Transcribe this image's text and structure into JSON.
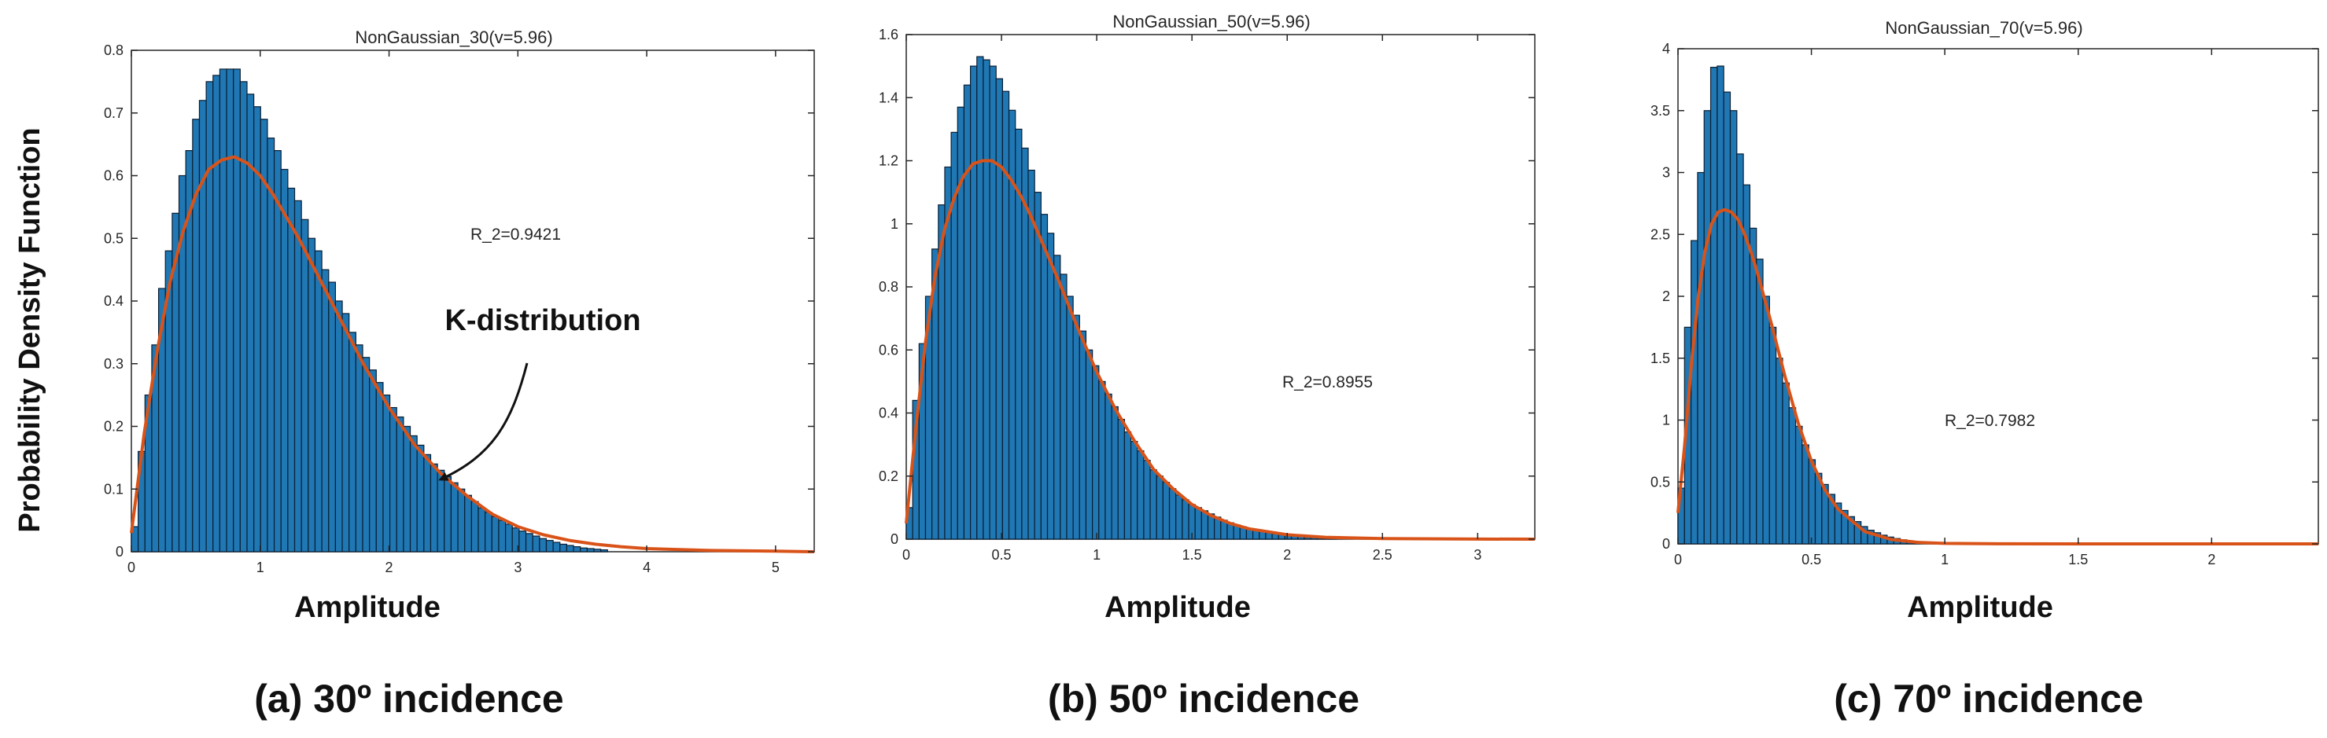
{
  "figure": {
    "ylabel": "Probability Density Function",
    "accent_colors": {
      "bar_fill": "#1f77b4",
      "bar_edge": "#0b1f33",
      "fit_curve": "#d95319"
    }
  },
  "chart_data": [
    {
      "type": "bar",
      "title": "NonGaussian_30(v=5.96)",
      "xlabel": "Amplitude",
      "ylabel": "Probability Density Function",
      "caption": "(a) 30º incidence",
      "r2_label": "R_2=0.9421",
      "annotation": "K-distribution",
      "xlim": [
        0,
        5.3
      ],
      "ylim": [
        0,
        0.8
      ],
      "xticks": [
        0,
        1,
        2,
        3,
        4,
        5
      ],
      "yticks": [
        0,
        0.1,
        0.2,
        0.3,
        0.4,
        0.5,
        0.6,
        0.7,
        0.8
      ],
      "bin_width": 0.0528,
      "bins_start": 0.0,
      "histogram_values": [
        0.04,
        0.16,
        0.25,
        0.33,
        0.42,
        0.48,
        0.54,
        0.6,
        0.64,
        0.69,
        0.72,
        0.75,
        0.76,
        0.77,
        0.77,
        0.77,
        0.75,
        0.73,
        0.71,
        0.69,
        0.66,
        0.64,
        0.61,
        0.58,
        0.56,
        0.53,
        0.5,
        0.48,
        0.45,
        0.43,
        0.4,
        0.38,
        0.35,
        0.33,
        0.31,
        0.29,
        0.27,
        0.25,
        0.23,
        0.215,
        0.2,
        0.185,
        0.17,
        0.155,
        0.14,
        0.13,
        0.12,
        0.11,
        0.1,
        0.09,
        0.08,
        0.07,
        0.063,
        0.056,
        0.05,
        0.044,
        0.038,
        0.033,
        0.029,
        0.025,
        0.021,
        0.018,
        0.015,
        0.012,
        0.01,
        0.008,
        0.006,
        0.005,
        0.004,
        0.003
      ],
      "fit_curve": {
        "name": "K-distribution",
        "x": [
          0.0,
          0.1,
          0.2,
          0.3,
          0.4,
          0.5,
          0.6,
          0.7,
          0.8,
          0.9,
          1.0,
          1.1,
          1.2,
          1.3,
          1.4,
          1.5,
          1.6,
          1.7,
          1.8,
          1.9,
          2.0,
          2.2,
          2.4,
          2.6,
          2.8,
          3.0,
          3.2,
          3.4,
          3.6,
          3.8,
          4.0,
          4.5,
          5.0,
          5.3
        ],
        "y": [
          0.03,
          0.19,
          0.32,
          0.43,
          0.51,
          0.57,
          0.61,
          0.625,
          0.63,
          0.62,
          0.6,
          0.57,
          0.535,
          0.5,
          0.46,
          0.42,
          0.38,
          0.34,
          0.3,
          0.265,
          0.23,
          0.17,
          0.125,
          0.09,
          0.06,
          0.04,
          0.027,
          0.018,
          0.012,
          0.008,
          0.005,
          0.002,
          0.001,
          0.0
        ]
      }
    },
    {
      "type": "bar",
      "title": "NonGaussian_50(v=5.96)",
      "xlabel": "Amplitude",
      "caption": "(b) 50º incidence",
      "r2_label": "R_2=0.8955",
      "xlim": [
        0,
        3.3
      ],
      "ylim": [
        0,
        1.6
      ],
      "xticks": [
        0,
        0.5,
        1,
        1.5,
        2,
        2.5,
        3
      ],
      "yticks": [
        0,
        0.2,
        0.4,
        0.6,
        0.8,
        1,
        1.2,
        1.4,
        1.6
      ],
      "bin_width": 0.0337,
      "bins_start": 0.0,
      "histogram_values": [
        0.1,
        0.44,
        0.62,
        0.77,
        0.92,
        1.06,
        1.18,
        1.29,
        1.37,
        1.44,
        1.5,
        1.53,
        1.52,
        1.5,
        1.46,
        1.42,
        1.36,
        1.3,
        1.24,
        1.17,
        1.1,
        1.03,
        0.97,
        0.9,
        0.84,
        0.77,
        0.71,
        0.66,
        0.6,
        0.55,
        0.5,
        0.46,
        0.42,
        0.38,
        0.34,
        0.31,
        0.28,
        0.25,
        0.22,
        0.2,
        0.18,
        0.16,
        0.14,
        0.125,
        0.11,
        0.1,
        0.09,
        0.08,
        0.07,
        0.06,
        0.052,
        0.045,
        0.039,
        0.033,
        0.028,
        0.024,
        0.02,
        0.017,
        0.014,
        0.012,
        0.01,
        0.008,
        0.006,
        0.005,
        0.004,
        0.003,
        0.002
      ],
      "fit_curve": {
        "name": "K-distribution",
        "x": [
          0.0,
          0.05,
          0.1,
          0.15,
          0.2,
          0.25,
          0.3,
          0.35,
          0.4,
          0.45,
          0.5,
          0.55,
          0.6,
          0.65,
          0.7,
          0.75,
          0.8,
          0.9,
          1.0,
          1.1,
          1.2,
          1.3,
          1.4,
          1.5,
          1.6,
          1.7,
          1.8,
          2.0,
          2.2,
          2.5,
          3.0,
          3.3
        ],
        "y": [
          0.05,
          0.35,
          0.62,
          0.83,
          0.98,
          1.08,
          1.15,
          1.19,
          1.2,
          1.2,
          1.18,
          1.14,
          1.09,
          1.03,
          0.96,
          0.89,
          0.82,
          0.67,
          0.53,
          0.41,
          0.31,
          0.22,
          0.16,
          0.11,
          0.075,
          0.05,
          0.033,
          0.014,
          0.006,
          0.002,
          0.0003,
          0.0
        ]
      }
    },
    {
      "type": "bar",
      "title": "NonGaussian_70(v=5.96)",
      "xlabel": "Amplitude",
      "caption": "(c) 70º incidence",
      "r2_label": "R_2=0.7982",
      "xlim": [
        0,
        2.4
      ],
      "ylim": [
        0,
        4
      ],
      "xticks": [
        0,
        0.5,
        1,
        1.5,
        2
      ],
      "yticks": [
        0,
        0.5,
        1,
        1.5,
        2,
        2.5,
        3,
        3.5,
        4
      ],
      "bin_width": 0.0245,
      "bins_start": 0.0,
      "histogram_values": [
        0.45,
        1.75,
        2.45,
        3.0,
        3.5,
        3.85,
        3.86,
        3.65,
        3.5,
        3.15,
        2.9,
        2.55,
        2.3,
        2.0,
        1.75,
        1.5,
        1.3,
        1.1,
        0.95,
        0.8,
        0.68,
        0.57,
        0.48,
        0.4,
        0.33,
        0.27,
        0.22,
        0.18,
        0.14,
        0.11,
        0.09,
        0.07,
        0.055,
        0.043,
        0.033,
        0.025,
        0.019,
        0.014,
        0.01,
        0.008,
        0.006,
        0.004,
        0.003,
        0.002
      ],
      "fit_curve": {
        "name": "K-distribution",
        "x": [
          0.0,
          0.025,
          0.05,
          0.075,
          0.1,
          0.125,
          0.15,
          0.175,
          0.2,
          0.225,
          0.25,
          0.275,
          0.3,
          0.35,
          0.4,
          0.45,
          0.5,
          0.55,
          0.6,
          0.7,
          0.8,
          0.9,
          1.0,
          1.2,
          1.5,
          2.0,
          2.4
        ],
        "y": [
          0.25,
          0.8,
          1.45,
          1.98,
          2.35,
          2.58,
          2.68,
          2.7,
          2.68,
          2.62,
          2.5,
          2.35,
          2.17,
          1.78,
          1.36,
          0.98,
          0.67,
          0.44,
          0.28,
          0.1,
          0.035,
          0.012,
          0.004,
          0.0006,
          0.0001,
          0.0,
          0.0
        ]
      }
    }
  ]
}
